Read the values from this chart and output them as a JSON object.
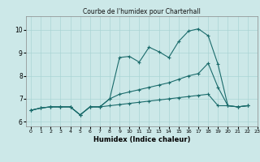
{
  "title": "Courbe de l'humidex pour Charterhall",
  "xlabel": "Humidex (Indice chaleur)",
  "xlim": [
    -0.5,
    23
  ],
  "ylim": [
    5.8,
    10.6
  ],
  "yticks": [
    6,
    7,
    8,
    9,
    10
  ],
  "xticks": [
    0,
    1,
    2,
    3,
    4,
    5,
    6,
    7,
    8,
    9,
    10,
    11,
    12,
    13,
    14,
    15,
    16,
    17,
    18,
    19,
    20,
    21,
    22,
    23
  ],
  "bg_color": "#cce8e8",
  "line_color": "#1a6b6b",
  "grid_color": "#aad4d4",
  "series": [
    [
      6.5,
      6.6,
      6.65,
      6.65,
      6.65,
      6.3,
      6.65,
      6.65,
      7.0,
      8.8,
      8.85,
      8.6,
      9.25,
      9.05,
      8.8,
      9.5,
      9.95,
      10.05,
      9.75,
      8.5,
      6.7,
      6.65,
      6.7
    ],
    [
      6.5,
      6.6,
      6.65,
      6.65,
      6.65,
      6.3,
      6.65,
      6.65,
      7.0,
      7.2,
      7.3,
      7.4,
      7.5,
      7.6,
      7.7,
      7.85,
      8.0,
      8.1,
      8.55,
      7.5,
      6.7,
      6.65,
      6.7
    ],
    [
      6.5,
      6.6,
      6.65,
      6.65,
      6.65,
      6.3,
      6.65,
      6.65,
      6.7,
      6.75,
      6.8,
      6.85,
      6.9,
      6.95,
      7.0,
      7.05,
      7.1,
      7.15,
      7.2,
      6.7,
      6.7,
      6.65,
      6.7
    ]
  ]
}
